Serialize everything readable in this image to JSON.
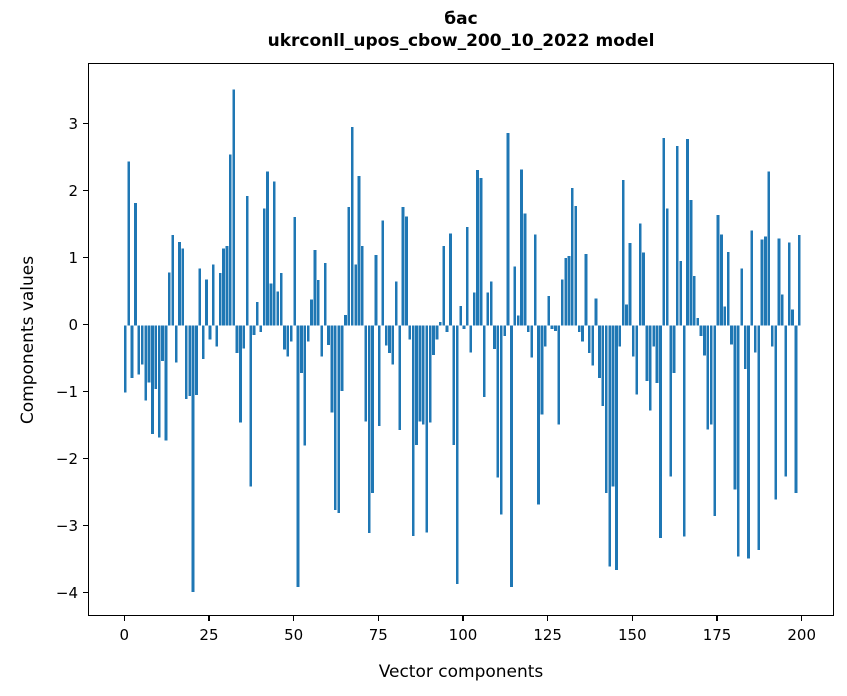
{
  "header": {
    "title_line1": "бас",
    "title_line2": "ukrconll_upos_cbow_200_10_2022 model"
  },
  "axes": {
    "xlabel": "Vector components",
    "ylabel": "Components values"
  },
  "chart_data": {
    "type": "bar",
    "title": "бас",
    "subtitle": "ukrconll_upos_cbow_200_10_2022 model",
    "xlabel": "Vector components",
    "ylabel": "Components values",
    "bar_color": "#1f77b4",
    "grid": false,
    "legend": "none",
    "xticks": [
      0,
      25,
      50,
      75,
      100,
      125,
      150,
      175,
      200
    ],
    "yticks": [
      3,
      2,
      1,
      0,
      -1,
      -2,
      -3,
      -4
    ],
    "xlim": [
      -10.5,
      209.5
    ],
    "ylim": [
      -4.36,
      3.92
    ],
    "n_components": 200,
    "values": [
      -1.0,
      2.45,
      -0.78,
      1.83,
      -0.73,
      -0.58,
      -1.12,
      -0.85,
      -1.62,
      -0.95,
      -1.67,
      -0.53,
      -1.72,
      0.79,
      1.35,
      -0.55,
      1.25,
      1.15,
      -1.1,
      -1.05,
      -3.98,
      -1.04,
      0.85,
      -0.5,
      0.69,
      -0.21,
      0.91,
      -0.31,
      0.78,
      1.15,
      1.19,
      2.55,
      3.52,
      -0.41,
      -1.45,
      -0.34,
      1.93,
      -2.4,
      -0.14,
      0.35,
      -0.1,
      1.75,
      2.3,
      0.63,
      2.15,
      0.51,
      0.78,
      -0.36,
      -0.46,
      -0.24,
      1.62,
      -3.9,
      -0.71,
      -1.79,
      -0.24,
      0.39,
      1.13,
      0.68,
      -0.46,
      0.93,
      -0.29,
      -1.3,
      -2.75,
      -2.8,
      -0.98,
      0.16,
      1.77,
      2.96,
      0.91,
      2.23,
      1.19,
      -1.43,
      -3.1,
      -2.5,
      1.05,
      -1.5,
      1.57,
      -0.3,
      -0.41,
      -0.58,
      0.66,
      -1.56,
      1.77,
      1.63,
      -0.21,
      -3.14,
      -1.78,
      -1.43,
      -1.48,
      -3.09,
      -1.45,
      -0.44,
      -0.21,
      0.05,
      1.19,
      -0.1,
      1.37,
      -1.78,
      -3.86,
      0.29,
      -0.05,
      1.47,
      -0.4,
      0.49,
      2.32,
      2.2,
      -1.07,
      0.49,
      0.66,
      -0.35,
      -2.27,
      -2.82,
      -0.16,
      2.87,
      -3.9,
      0.88,
      0.15,
      2.33,
      1.67,
      -0.1,
      -0.48,
      1.36,
      -2.67,
      -1.33,
      -0.31,
      0.44,
      -0.05,
      -0.08,
      -1.48,
      0.69,
      1.01,
      1.04,
      2.05,
      1.78,
      -0.1,
      -0.24,
      1.07,
      -0.41,
      -0.6,
      0.4,
      -0.78,
      -1.2,
      -2.5,
      -3.6,
      -2.4,
      -3.65,
      -0.31,
      2.17,
      0.31,
      1.23,
      -0.46,
      -1.03,
      1.52,
      1.09,
      -0.83,
      -1.27,
      -0.31,
      -0.86,
      -3.17,
      2.8,
      1.75,
      -2.25,
      -0.71,
      2.68,
      0.96,
      -3.15,
      2.78,
      1.87,
      0.74,
      0.11,
      -0.16,
      -0.45,
      -1.55,
      -1.48,
      -2.84,
      1.65,
      1.36,
      0.28,
      1.1,
      -0.28,
      -2.45,
      -3.45,
      0.85,
      -0.65,
      -3.48,
      1.42,
      -0.4,
      -3.35,
      1.28,
      1.33,
      2.3,
      -0.31,
      -2.6,
      1.3,
      0.46,
      -2.25,
      1.24,
      0.24,
      -2.5,
      1.35
    ]
  }
}
